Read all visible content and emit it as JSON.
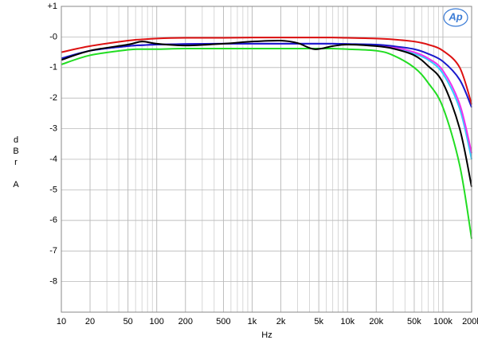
{
  "chart_data": {
    "type": "line",
    "logo": "Ap",
    "xlabel": "Hz",
    "ylabel": "dBr A",
    "x": [
      10,
      20,
      50,
      70,
      100,
      200,
      500,
      1000,
      2000,
      3000,
      4500,
      7000,
      10000,
      20000,
      30000,
      50000,
      70000,
      100000,
      150000,
      200000
    ],
    "series": [
      {
        "color": "#22dd22",
        "values": [
          -0.9,
          -0.6,
          -0.42,
          -0.4,
          -0.4,
          -0.38,
          -0.38,
          -0.38,
          -0.38,
          -0.38,
          -0.38,
          -0.38,
          -0.4,
          -0.45,
          -0.6,
          -1.0,
          -1.5,
          -2.3,
          -4.2,
          -6.6
        ]
      },
      {
        "color": "#33ccff",
        "values": [
          -0.75,
          -0.45,
          -0.3,
          -0.27,
          -0.25,
          -0.23,
          -0.22,
          -0.22,
          -0.22,
          -0.22,
          -0.22,
          -0.22,
          -0.23,
          -0.28,
          -0.35,
          -0.55,
          -0.75,
          -1.2,
          -2.35,
          -4.0
        ]
      },
      {
        "color": "#ee33ee",
        "values": [
          -0.75,
          -0.45,
          -0.3,
          -0.27,
          -0.25,
          -0.23,
          -0.22,
          -0.22,
          -0.22,
          -0.22,
          -0.22,
          -0.22,
          -0.23,
          -0.27,
          -0.33,
          -0.5,
          -0.7,
          -1.1,
          -2.2,
          -3.8
        ]
      },
      {
        "color": "#1a1acc",
        "values": [
          -0.7,
          -0.45,
          -0.3,
          -0.27,
          -0.25,
          -0.23,
          -0.22,
          -0.22,
          -0.22,
          -0.22,
          -0.22,
          -0.22,
          -0.23,
          -0.25,
          -0.3,
          -0.4,
          -0.55,
          -0.8,
          -1.4,
          -2.3
        ]
      },
      {
        "color": "#000000",
        "values": [
          -0.75,
          -0.45,
          -0.25,
          -0.15,
          -0.22,
          -0.28,
          -0.22,
          -0.15,
          -0.12,
          -0.2,
          -0.4,
          -0.3,
          -0.25,
          -0.3,
          -0.38,
          -0.6,
          -0.95,
          -1.5,
          -3.0,
          -4.9
        ]
      },
      {
        "color": "#dd1111",
        "values": [
          -0.5,
          -0.3,
          -0.12,
          -0.08,
          -0.05,
          -0.03,
          -0.03,
          -0.02,
          -0.02,
          -0.02,
          -0.02,
          -0.02,
          -0.03,
          -0.05,
          -0.08,
          -0.15,
          -0.25,
          -0.45,
          -1.0,
          -2.2
        ]
      }
    ],
    "log_x": true,
    "grid": true,
    "xlim": [
      10,
      200000
    ],
    "xticks": [
      10,
      20,
      50,
      100,
      200,
      500,
      {
        "value": 1000,
        "label": "1k"
      },
      {
        "value": 2000,
        "label": "2k"
      },
      {
        "value": 5000,
        "label": "5k"
      },
      {
        "value": 10000,
        "label": "10k"
      },
      {
        "value": 20000,
        "label": "20k"
      },
      {
        "value": 50000,
        "label": "50k"
      },
      {
        "value": 100000,
        "label": "100k"
      },
      {
        "value": 200000,
        "label": "200k"
      }
    ],
    "ylim": [
      -9,
      1
    ],
    "yticks": [
      {
        "value": 1,
        "label": "+1"
      },
      {
        "value": 0,
        "label": "-0"
      },
      -1,
      -2,
      -3,
      -4,
      -5,
      -6,
      -7,
      -8
    ]
  }
}
